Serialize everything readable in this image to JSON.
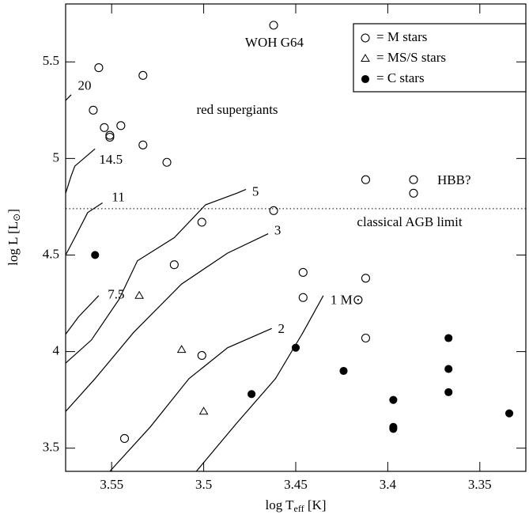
{
  "chart_data": {
    "type": "scatter",
    "xlabel": "log T",
    "xlabel_sub": "eff",
    "xlabel_unit": "[K]",
    "ylabel": "log L",
    "ylabel_unit_open": "[L",
    "ylabel_sub": "⊙",
    "ylabel_unit_close": "]",
    "xlim": [
      3.575,
      3.325
    ],
    "xticks": [
      3.55,
      3.5,
      3.45,
      3.4,
      3.35
    ],
    "ylim": [
      3.38,
      5.8
    ],
    "yticks": [
      3.5,
      4,
      4.5,
      5,
      5.5
    ],
    "legend": "upper right",
    "reference_line": 4.74,
    "series": [
      {
        "name": "= M stars",
        "marker": "open-circle",
        "color": "#000000",
        "x": [
          3.462,
          3.557,
          3.533,
          3.56,
          3.554,
          3.545,
          3.551,
          3.551,
          3.533,
          3.52,
          3.412,
          3.386,
          3.386,
          3.462,
          3.501,
          3.516,
          3.446,
          3.446,
          3.412,
          3.412,
          3.501,
          3.543
        ],
        "values": [
          5.69,
          5.47,
          5.43,
          5.25,
          5.16,
          5.17,
          5.12,
          5.11,
          5.07,
          4.98,
          4.89,
          4.89,
          4.82,
          4.73,
          4.67,
          4.45,
          4.41,
          4.28,
          4.38,
          4.07,
          3.98,
          3.55
        ]
      },
      {
        "name": "= MS/S stars",
        "marker": "open-triangle",
        "color": "#000000",
        "x": [
          3.535,
          3.512,
          3.5
        ],
        "values": [
          4.29,
          4.01,
          3.69
        ]
      },
      {
        "name": "= C stars",
        "marker": "filled-circle",
        "color": "#000000",
        "x": [
          3.559,
          3.474,
          3.45,
          3.424,
          3.397,
          3.397,
          3.397,
          3.367,
          3.367,
          3.367,
          3.334
        ],
        "values": [
          4.5,
          3.78,
          4.02,
          3.9,
          3.75,
          3.61,
          3.6,
          4.07,
          3.91,
          3.79,
          3.68
        ]
      }
    ],
    "tracks": [
      {
        "label": "1 M⊙",
        "x": [
          3.504,
          3.482,
          3.461,
          3.446,
          3.435
        ],
        "values": [
          3.38,
          3.63,
          3.86,
          4.1,
          4.29
        ]
      },
      {
        "label": "2",
        "x": [
          3.551,
          3.529,
          3.508,
          3.487,
          3.463
        ],
        "values": [
          3.38,
          3.61,
          3.86,
          4.02,
          4.12
        ]
      },
      {
        "label": "3",
        "x": [
          3.575,
          3.559,
          3.538,
          3.512,
          3.487,
          3.465
        ],
        "values": [
          3.69,
          3.86,
          4.1,
          4.35,
          4.51,
          4.61
        ]
      },
      {
        "label": "5",
        "x": [
          3.575,
          3.561,
          3.546,
          3.536,
          3.516,
          3.499,
          3.482,
          3.477
        ],
        "values": [
          3.94,
          4.06,
          4.27,
          4.47,
          4.59,
          4.76,
          4.82,
          4.84
        ]
      },
      {
        "label": "7.5",
        "x": [
          3.575,
          3.568,
          3.557
        ],
        "values": [
          4.09,
          4.18,
          4.29
        ]
      },
      {
        "label": "11",
        "x": [
          3.575,
          3.57,
          3.563,
          3.555
        ],
        "values": [
          4.5,
          4.59,
          4.72,
          4.77
        ]
      },
      {
        "label": "14.5",
        "x": [
          3.575,
          3.572,
          3.57,
          3.559
        ],
        "values": [
          4.82,
          4.91,
          4.96,
          5.05
        ]
      },
      {
        "label": "20",
        "x": [
          3.575,
          3.572
        ],
        "values": [
          5.3,
          5.33
        ]
      }
    ],
    "annotations": [
      "WOH G64",
      "red supergiants",
      "HBB?",
      "classical AGB limit"
    ]
  }
}
